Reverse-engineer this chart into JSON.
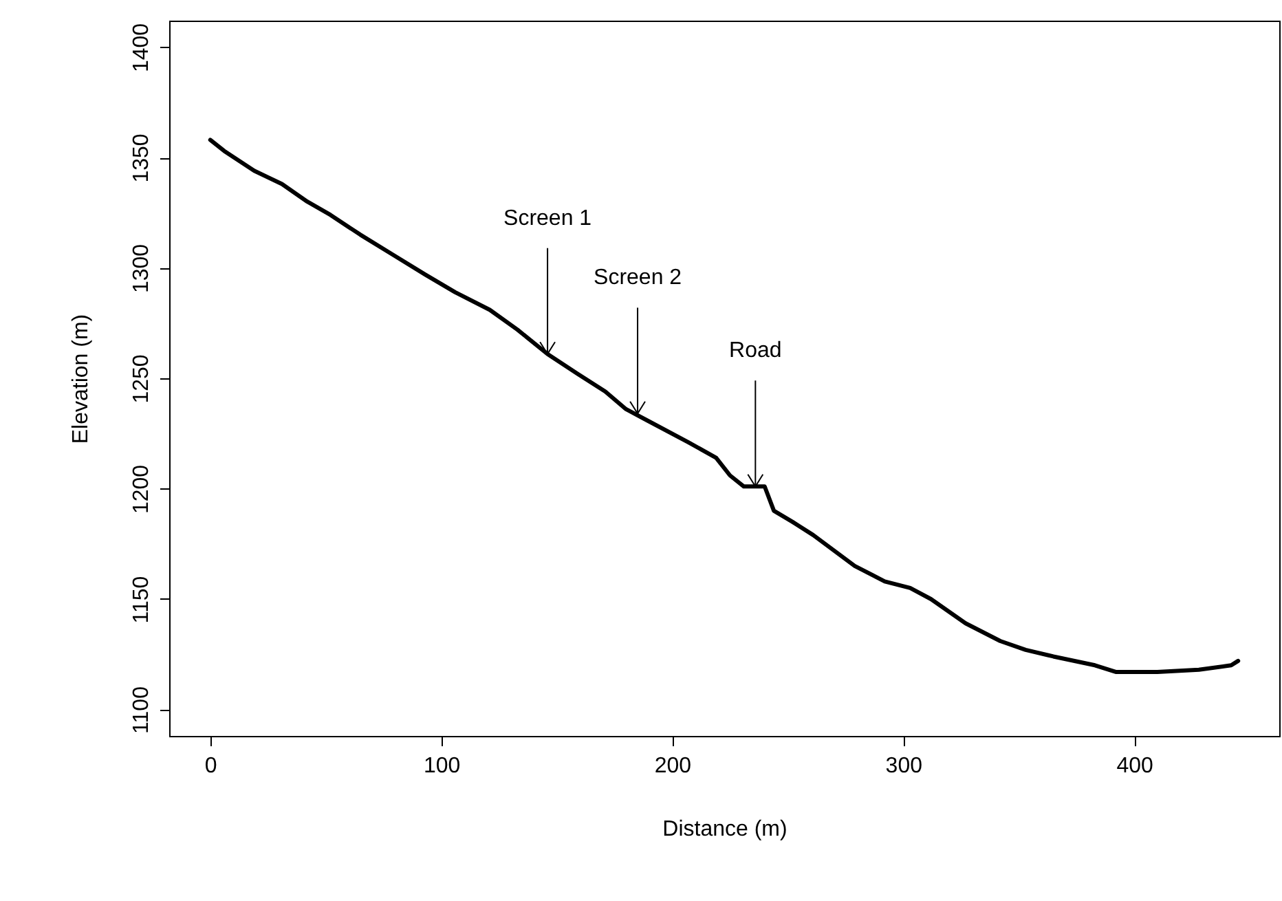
{
  "chart_data": {
    "type": "line",
    "xlabel": "Distance (m)",
    "ylabel": "Elevation (m)",
    "x": [
      0,
      6,
      19,
      31,
      42,
      52,
      65,
      79,
      93,
      106,
      121,
      133,
      146,
      159,
      171,
      180,
      189,
      207,
      219,
      225,
      231,
      240,
      244,
      252,
      261,
      279,
      292,
      303,
      312,
      327,
      342,
      353,
      365,
      383,
      392,
      410,
      428,
      442,
      445
    ],
    "series": [
      {
        "color": "#000000",
        "values": [
          1358,
          1353,
          1344,
          1338,
          1330,
          1324,
          1315,
          1306,
          1297,
          1289,
          1281,
          1272,
          1261,
          1252,
          1244,
          1236,
          1231,
          1221,
          1214,
          1206,
          1201,
          1201,
          1190,
          1185,
          1179,
          1165,
          1158,
          1155,
          1150,
          1139,
          1131,
          1127,
          1124,
          1120,
          1117,
          1117,
          1118,
          1120,
          1122
        ]
      }
    ],
    "xlim": [
      -17.8,
      462.8
    ],
    "xticks": [
      0,
      100,
      200,
      300,
      400
    ],
    "ylim": [
      1088,
      1412
    ],
    "yticks": [
      1100,
      1150,
      1200,
      1250,
      1300,
      1350,
      1400
    ],
    "grid": false,
    "marker": "none",
    "line_style": "solid",
    "annotations": [
      {
        "text": "Screen 1",
        "x": 146,
        "y": 1261
      },
      {
        "text": "Screen 2",
        "x": 185,
        "y": 1234
      },
      {
        "text": "Road",
        "x": 236,
        "y": 1201
      }
    ]
  }
}
